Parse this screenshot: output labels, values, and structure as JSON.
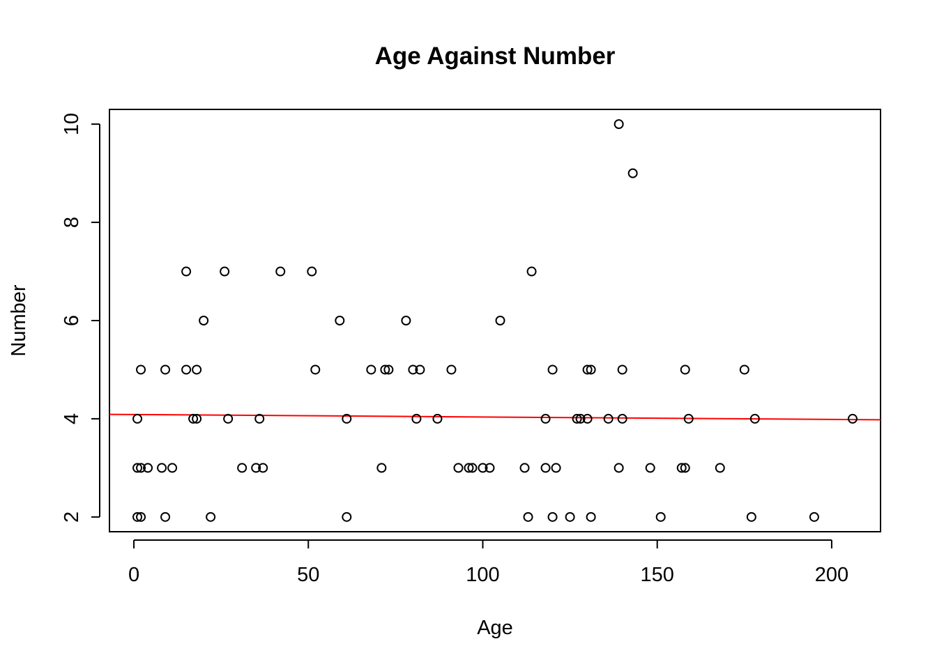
{
  "chart_data": {
    "type": "scatter",
    "title": "Age Against Number",
    "xlabel": "Age",
    "ylabel": "Number",
    "xlim": [
      -7,
      214
    ],
    "ylim": [
      1.7,
      10.3
    ],
    "x_ticks": [
      0,
      50,
      100,
      150,
      200
    ],
    "y_ticks": [
      2,
      4,
      6,
      8,
      10
    ],
    "grid": false,
    "legend": "none",
    "point_color": "#000000",
    "trend_line": {
      "color": "#ff0000",
      "x": [
        -7,
        214
      ],
      "y": [
        4.09,
        3.98
      ]
    },
    "series": [
      {
        "points": [
          [
            1,
            4
          ],
          [
            1,
            3
          ],
          [
            1,
            2
          ],
          [
            2,
            5
          ],
          [
            2,
            3
          ],
          [
            2,
            2
          ],
          [
            4,
            3
          ],
          [
            8,
            3
          ],
          [
            9,
            5
          ],
          [
            9,
            2
          ],
          [
            11,
            3
          ],
          [
            15,
            7
          ],
          [
            15,
            5
          ],
          [
            17,
            4
          ],
          [
            18,
            5
          ],
          [
            18,
            4
          ],
          [
            20,
            6
          ],
          [
            22,
            2
          ],
          [
            26,
            7
          ],
          [
            27,
            4
          ],
          [
            31,
            3
          ],
          [
            35,
            3
          ],
          [
            36,
            4
          ],
          [
            37,
            3
          ],
          [
            42,
            7
          ],
          [
            51,
            7
          ],
          [
            52,
            5
          ],
          [
            59,
            6
          ],
          [
            61,
            4
          ],
          [
            61,
            2
          ],
          [
            68,
            5
          ],
          [
            71,
            3
          ],
          [
            72,
            5
          ],
          [
            73,
            5
          ],
          [
            78,
            6
          ],
          [
            80,
            5
          ],
          [
            81,
            4
          ],
          [
            82,
            5
          ],
          [
            87,
            4
          ],
          [
            91,
            5
          ],
          [
            93,
            3
          ],
          [
            96,
            3
          ],
          [
            97,
            3
          ],
          [
            100,
            3
          ],
          [
            102,
            3
          ],
          [
            105,
            6
          ],
          [
            112,
            3
          ],
          [
            113,
            2
          ],
          [
            114,
            7
          ],
          [
            118,
            4
          ],
          [
            118,
            3
          ],
          [
            120,
            5
          ],
          [
            120,
            2
          ],
          [
            121,
            3
          ],
          [
            125,
            2
          ],
          [
            127,
            4
          ],
          [
            128,
            4
          ],
          [
            130,
            5
          ],
          [
            130,
            4
          ],
          [
            131,
            5
          ],
          [
            131,
            2
          ],
          [
            136,
            4
          ],
          [
            139,
            10
          ],
          [
            139,
            3
          ],
          [
            140,
            5
          ],
          [
            140,
            4
          ],
          [
            143,
            9
          ],
          [
            148,
            3
          ],
          [
            151,
            2
          ],
          [
            157,
            3
          ],
          [
            158,
            5
          ],
          [
            158,
            3
          ],
          [
            159,
            4
          ],
          [
            168,
            3
          ],
          [
            175,
            5
          ],
          [
            177,
            2
          ],
          [
            178,
            4
          ],
          [
            195,
            2
          ],
          [
            206,
            4
          ]
        ]
      }
    ]
  }
}
